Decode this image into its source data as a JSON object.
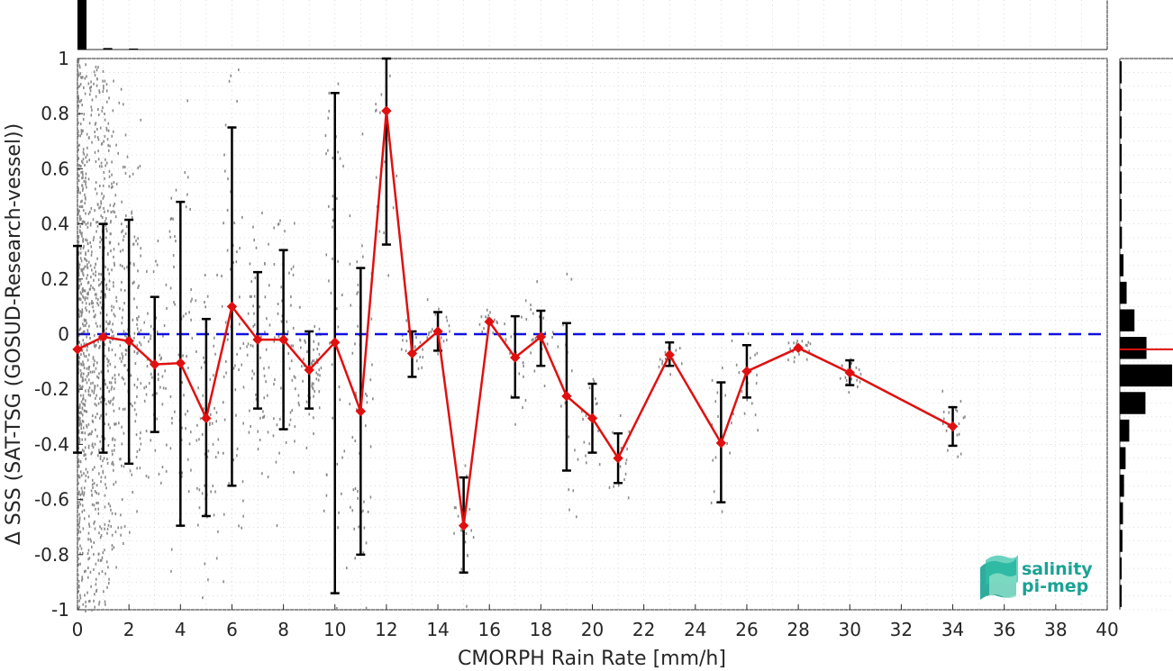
{
  "chart_data": {
    "type": "scatter",
    "xlabel": "CMORPH Rain Rate [mm/h]",
    "ylabel": "Δ SSS (SAT-TSG (GOSUD-Research-vessel))",
    "xlim": [
      0,
      40
    ],
    "ylim": [
      -1,
      1
    ],
    "x_ticks": [
      "0",
      "2",
      "4",
      "6",
      "8",
      "10",
      "12",
      "14",
      "16",
      "18",
      "20",
      "22",
      "24",
      "26",
      "28",
      "30",
      "32",
      "34",
      "36",
      "38",
      "40"
    ],
    "y_ticks": [
      "1",
      "0.8",
      "0.6",
      "0.4",
      "0.2",
      "0",
      "-0.2",
      "-0.4",
      "-0.6",
      "-0.8",
      "-1"
    ],
    "grid": true,
    "reference_line": {
      "y": 0,
      "style": "dashed",
      "color": "#1010dd"
    },
    "series": [
      {
        "type": "line-with-errorbars",
        "color": "#e01010",
        "marker": "diamond",
        "points": [
          {
            "x": 0,
            "y": -0.055,
            "lo": -0.43,
            "hi": 0.32
          },
          {
            "x": 1,
            "y": -0.01,
            "lo": -0.43,
            "hi": 0.4
          },
          {
            "x": 2,
            "y": -0.025,
            "lo": -0.47,
            "hi": 0.415
          },
          {
            "x": 3,
            "y": -0.11,
            "lo": -0.355,
            "hi": 0.135
          },
          {
            "x": 4,
            "y": -0.105,
            "lo": -0.695,
            "hi": 0.48
          },
          {
            "x": 5,
            "y": -0.305,
            "lo": -0.66,
            "hi": 0.055
          },
          {
            "x": 6,
            "y": 0.1,
            "lo": -0.55,
            "hi": 0.75
          },
          {
            "x": 7,
            "y": -0.02,
            "lo": -0.27,
            "hi": 0.225
          },
          {
            "x": 8,
            "y": -0.02,
            "lo": -0.345,
            "hi": 0.305
          },
          {
            "x": 9,
            "y": -0.13,
            "lo": -0.27,
            "hi": 0.01
          },
          {
            "x": 10,
            "y": -0.03,
            "lo": -0.94,
            "hi": 0.875
          },
          {
            "x": 11,
            "y": -0.28,
            "lo": -0.8,
            "hi": 0.24
          },
          {
            "x": 12,
            "y": 0.81,
            "lo": 0.325,
            "hi": 1.0
          },
          {
            "x": 13,
            "y": -0.07,
            "lo": -0.155,
            "hi": 0.01
          },
          {
            "x": 14,
            "y": 0.01,
            "lo": -0.06,
            "hi": 0.08
          },
          {
            "x": 15,
            "y": -0.695,
            "lo": -0.865,
            "hi": -0.52
          },
          {
            "x": 16,
            "y": 0.045,
            "lo": 0.045,
            "hi": 0.045
          },
          {
            "x": 17,
            "y": -0.085,
            "lo": -0.23,
            "hi": 0.065
          },
          {
            "x": 18,
            "y": -0.01,
            "lo": -0.115,
            "hi": 0.085
          },
          {
            "x": 19,
            "y": -0.225,
            "lo": -0.495,
            "hi": 0.04
          },
          {
            "x": 20,
            "y": -0.305,
            "lo": -0.43,
            "hi": -0.18
          },
          {
            "x": 21,
            "y": -0.45,
            "lo": -0.54,
            "hi": -0.36
          },
          {
            "x": 23,
            "y": -0.075,
            "lo": -0.115,
            "hi": -0.03
          },
          {
            "x": 25,
            "y": -0.395,
            "lo": -0.61,
            "hi": -0.175
          },
          {
            "x": 26,
            "y": -0.135,
            "lo": -0.23,
            "hi": -0.04
          },
          {
            "x": 28,
            "y": -0.05,
            "lo": -0.05,
            "hi": -0.05
          },
          {
            "x": 30,
            "y": -0.14,
            "lo": -0.185,
            "hi": -0.095
          },
          {
            "x": 34,
            "y": -0.335,
            "lo": -0.405,
            "hi": -0.265
          }
        ]
      }
    ],
    "top_histogram": {
      "bins_x": [
        0,
        1,
        2
      ],
      "values": [
        1.0,
        0.03,
        0.02
      ]
    },
    "right_histogram": {
      "bins_y": [
        0.95,
        0.85,
        0.75,
        0.65,
        0.55,
        0.45,
        0.35,
        0.25,
        0.15,
        0.05,
        -0.05,
        -0.15,
        -0.25,
        -0.35,
        -0.45,
        -0.55,
        -0.65,
        -0.75,
        -0.85,
        -0.95
      ],
      "values": [
        0.01,
        0.01,
        0.02,
        0.01,
        0.02,
        0.02,
        0.04,
        0.07,
        0.13,
        0.28,
        0.51,
        1.0,
        0.49,
        0.18,
        0.11,
        0.08,
        0.06,
        0.05,
        0.03,
        0.02
      ],
      "mean_line": {
        "y": -0.055,
        "color": "#e01010"
      }
    },
    "colors": {
      "scatter": "#8a8a8a",
      "errorbar": "#000000",
      "grid": "#c8c8c8",
      "axis": "#262626",
      "logo": "#1aa394"
    }
  },
  "logo": {
    "line1": "salinity",
    "line2": "pi-mep"
  }
}
